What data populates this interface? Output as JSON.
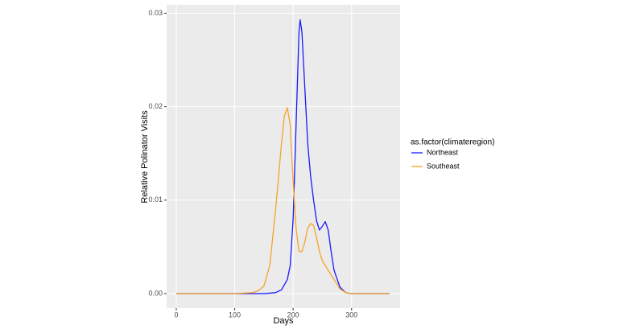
{
  "chart_data": {
    "type": "line",
    "xlabel": "Days",
    "ylabel": "Relative Polinator Visits",
    "legend_title": "as.factor(climateregion)",
    "series": [
      {
        "name": "Northeast",
        "color": "#1a1aff",
        "x": [
          0,
          50,
          100,
          150,
          170,
          180,
          190,
          195,
          200,
          205,
          210,
          212,
          215,
          220,
          225,
          230,
          235,
          240,
          245,
          250,
          255,
          260,
          265,
          270,
          280,
          290,
          300,
          365
        ],
        "values": [
          0,
          0,
          0,
          0,
          0.0001,
          0.0004,
          0.0015,
          0.003,
          0.008,
          0.018,
          0.028,
          0.0293,
          0.028,
          0.022,
          0.016,
          0.0125,
          0.01,
          0.0078,
          0.0068,
          0.0072,
          0.0077,
          0.0068,
          0.0045,
          0.0025,
          0.0007,
          0.0001,
          0,
          0
        ]
      },
      {
        "name": "Southeast",
        "color": "#f5a32a",
        "x": [
          0,
          50,
          100,
          130,
          140,
          150,
          160,
          170,
          180,
          185,
          190,
          195,
          200,
          205,
          210,
          215,
          220,
          225,
          230,
          235,
          240,
          245,
          250,
          255,
          260,
          270,
          280,
          290,
          300,
          365
        ],
        "values": [
          0,
          0,
          0,
          0.0001,
          0.0003,
          0.0008,
          0.003,
          0.009,
          0.016,
          0.019,
          0.0199,
          0.018,
          0.012,
          0.007,
          0.0045,
          0.0045,
          0.0055,
          0.007,
          0.0075,
          0.0073,
          0.006,
          0.0045,
          0.0035,
          0.003,
          0.0025,
          0.0015,
          0.0005,
          0.0001,
          0,
          0
        ]
      }
    ],
    "xlim": [
      -16.5,
      383
    ],
    "xticks": [
      0,
      100,
      200,
      300
    ],
    "ylim": [
      -0.00155,
      0.0309
    ],
    "yticks": [
      {
        "value": 0,
        "label": "0.00"
      },
      {
        "value": 0.01,
        "label": "0.01"
      },
      {
        "value": 0.02,
        "label": "0.02"
      },
      {
        "value": 0.03,
        "label": "0.03"
      }
    ],
    "grid": true,
    "legend": "right"
  }
}
